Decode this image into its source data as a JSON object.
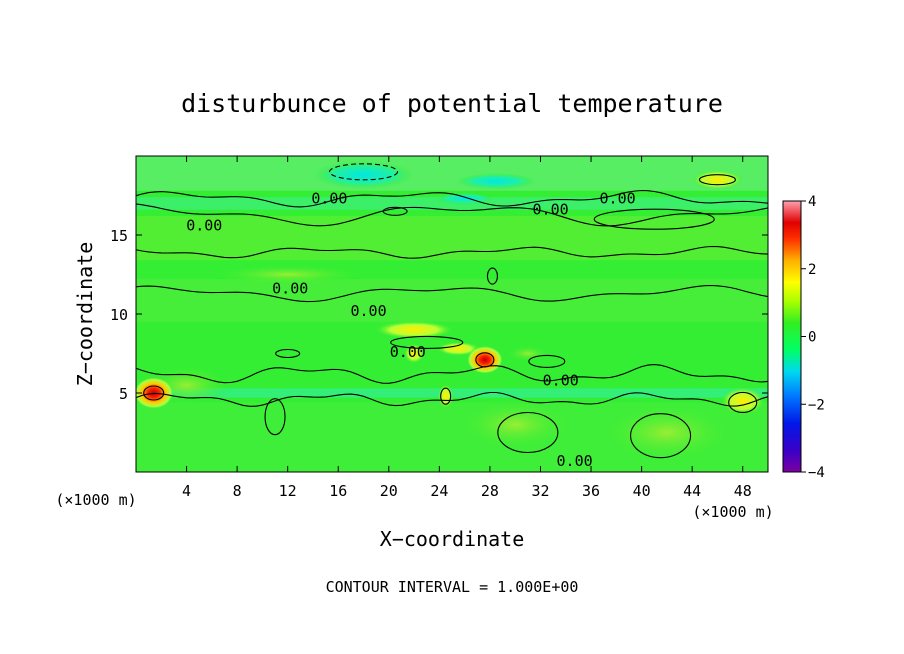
{
  "chart_data": {
    "type": "heatmap",
    "title": "disturbunce of potential temperature",
    "xlabel": "X−coordinate",
    "ylabel": "Z−coordinate",
    "x_unit": "(×1000 m)",
    "y_unit": "(×1000 m)",
    "xlim": [
      0,
      50
    ],
    "ylim": [
      0,
      20
    ],
    "xticks": [
      {
        "value": 4,
        "label": "4"
      },
      {
        "value": 8,
        "label": "8"
      },
      {
        "value": 12,
        "label": "12"
      },
      {
        "value": 16,
        "label": "16"
      },
      {
        "value": 20,
        "label": "20"
      },
      {
        "value": 24,
        "label": "24"
      },
      {
        "value": 28,
        "label": "28"
      },
      {
        "value": 32,
        "label": "32"
      },
      {
        "value": 36,
        "label": "36"
      },
      {
        "value": 40,
        "label": "40"
      },
      {
        "value": 44,
        "label": "44"
      },
      {
        "value": 48,
        "label": "48"
      }
    ],
    "yticks": [
      {
        "value": 5,
        "label": "5"
      },
      {
        "value": 10,
        "label": "10"
      },
      {
        "value": 15,
        "label": "15"
      }
    ],
    "colorbar": {
      "range": [
        -4,
        4
      ],
      "ticks": [
        {
          "value": 4,
          "label": "4"
        },
        {
          "value": 2,
          "label": "2"
        },
        {
          "value": 0,
          "label": "0"
        },
        {
          "value": -2,
          "label": "−2"
        },
        {
          "value": -4,
          "label": "−4"
        }
      ]
    },
    "contour_labels": [
      {
        "x": 15.3,
        "z": 17.3,
        "text": "0.00"
      },
      {
        "x": 32.8,
        "z": 16.6,
        "text": "0.00"
      },
      {
        "x": 38.1,
        "z": 17.3,
        "text": "0.00"
      },
      {
        "x": 5.4,
        "z": 15.6,
        "text": "0.00"
      },
      {
        "x": 12.2,
        "z": 11.6,
        "text": "0.00"
      },
      {
        "x": 18.4,
        "z": 10.2,
        "text": "0.00"
      },
      {
        "x": 21.5,
        "z": 7.6,
        "text": "0.00"
      },
      {
        "x": 33.6,
        "z": 5.8,
        "text": "0.00"
      },
      {
        "x": 34.7,
        "z": 0.7,
        "text": "0.00"
      }
    ],
    "features": [
      {
        "x": 1.4,
        "z": 5.0,
        "value": 3.4
      },
      {
        "x": 27.6,
        "z": 7.1,
        "value": 3.6
      },
      {
        "x": 48.2,
        "z": 4.4,
        "value": 1.2
      },
      {
        "x": 18.0,
        "z": 18.8,
        "value": -1.2
      },
      {
        "x": 46.0,
        "z": 18.5,
        "value": 1.0
      },
      {
        "x": 22.5,
        "z": 8.0,
        "value": 1.2
      },
      {
        "x": 21.0,
        "z": 9.0,
        "value": 1.1
      }
    ],
    "annotation": "CONTOUR INTERVAL = 1.000E+00",
    "colors": {
      "background_field": "#33ee33",
      "min": "#7a00a0",
      "max": "#ff9aaa"
    }
  }
}
